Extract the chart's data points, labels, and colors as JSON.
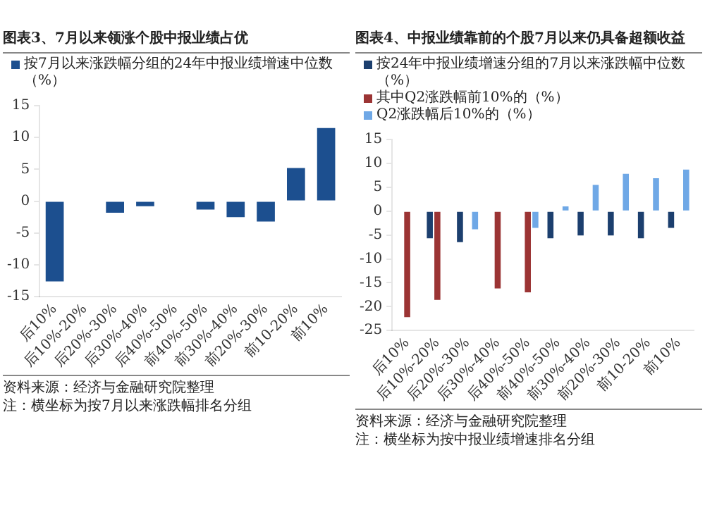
{
  "chart_data": [
    {
      "type": "bar",
      "title": "图表3、7月以来领涨个股中报业绩占优",
      "categories": [
        "后10%",
        "后10%-20%",
        "后20%-30%",
        "后30%-40%",
        "后40%-50%",
        "前40%-50%",
        "前30%-40%",
        "前20%-30%",
        "前10-20%",
        "前10%"
      ],
      "series": [
        {
          "name": "按7月以来涨跌幅分组的24年中报业绩增速中位数（%）",
          "color": "#1c4f8f",
          "values": [
            -12.6,
            null,
            -1.8,
            -0.8,
            null,
            -1.3,
            -2.5,
            -3.2,
            5.2,
            11.5
          ]
        }
      ],
      "ylim": [
        -15,
        15
      ],
      "yticks": [
        -15,
        -10,
        -5,
        0,
        5,
        10,
        15
      ],
      "grid": false,
      "legend": "top",
      "annotations": [
        "资料来源：经济与金融研究院整理",
        "注：横坐标为按7月以来涨跌幅排名分组"
      ]
    },
    {
      "type": "bar",
      "title": "图表4、中报业绩靠前的个股7月以来仍具备超额收益",
      "categories": [
        "后10%",
        "后10%-20%",
        "后20%-30%",
        "后30%-40%",
        "后40%-50%",
        "前40%-50%",
        "前30%-40%",
        "前20%-30%",
        "前10-20%",
        "前10%"
      ],
      "series": [
        {
          "name": "按24年中报业绩增速分组的7月以来涨跌幅中位数（%）",
          "color": "#1c3f6e",
          "values": [
            null,
            -5.7,
            -6.5,
            null,
            null,
            -5.7,
            -5.1,
            -5.1,
            -5.7,
            -3.5
          ]
        },
        {
          "name": "其中Q2涨跌幅前10%的（%）",
          "color": "#9b3434",
          "values": [
            -22.2,
            -18.6,
            null,
            -16.2,
            -17,
            null,
            null,
            null,
            null,
            null
          ]
        },
        {
          "name": "Q2涨跌幅后10%的（%）",
          "color": "#6fa8e6",
          "values": [
            null,
            null,
            -3.8,
            null,
            -3.5,
            1,
            5.5,
            7.8,
            6.9,
            8.7
          ]
        }
      ],
      "ylim": [
        -25,
        15
      ],
      "yticks": [
        -25,
        -20,
        -15,
        -10,
        -5,
        0,
        5,
        10,
        15
      ],
      "grid": false,
      "legend": "top",
      "annotations": [
        "资料来源：经济与金融研究院整理",
        "注：横坐标为按中报业绩增速排名分组"
      ]
    }
  ]
}
